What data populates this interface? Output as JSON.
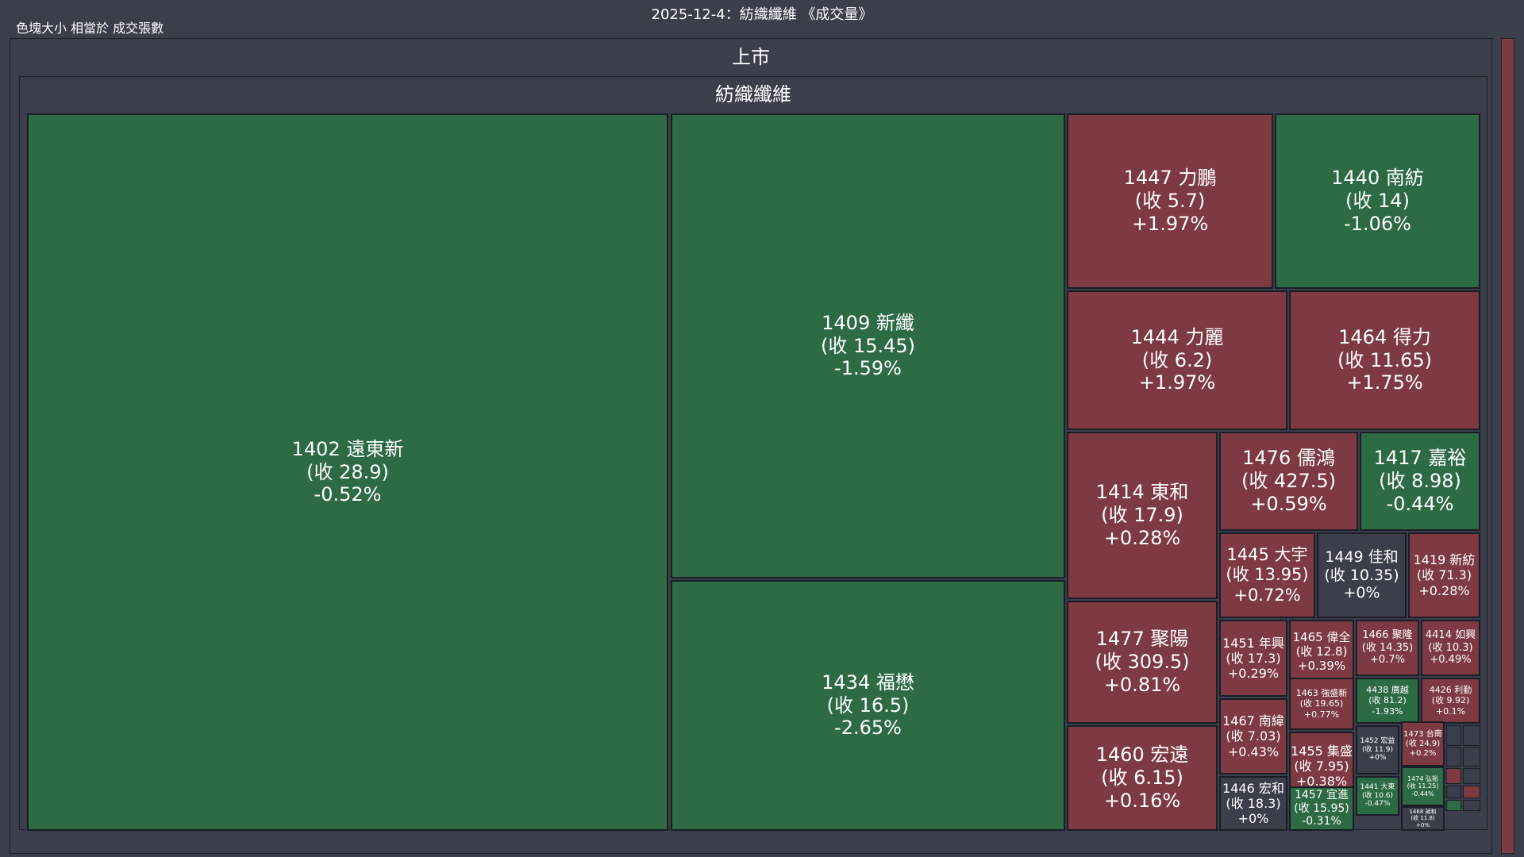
{
  "title": "2025-12-4：紡織纖維 《成交量》",
  "subtitle": "色塊大小 相當於 成交張數",
  "market_label": "上市",
  "sector_label": "紡織纖維",
  "colors": {
    "up": "#7e3a42",
    "down": "#2d6b45",
    "flat": "#3b3f4c",
    "background": "#3b3f4c",
    "border": "#1b1e25"
  },
  "chart_data": {
    "type": "treemap",
    "title": "2025-12-4：紡織纖維 《成交量》",
    "size_metric": "成交張數",
    "hierarchy": [
      "上市",
      "紡織纖維"
    ],
    "stocks": [
      {
        "code": "1402",
        "name": "遠東新",
        "close": "28.9",
        "change": "-0.52%",
        "change_pct": -0.52
      },
      {
        "code": "1409",
        "name": "新纖",
        "close": "15.45",
        "change": "-1.59%",
        "change_pct": -1.59
      },
      {
        "code": "1434",
        "name": "福懋",
        "close": "16.5",
        "change": "-2.65%",
        "change_pct": -2.65
      },
      {
        "code": "1447",
        "name": "力鵬",
        "close": "5.7",
        "change": "+1.97%",
        "change_pct": 1.97
      },
      {
        "code": "1440",
        "name": "南紡",
        "close": "14",
        "change": "-1.06%",
        "change_pct": -1.06
      },
      {
        "code": "1444",
        "name": "力麗",
        "close": "6.2",
        "change": "+1.97%",
        "change_pct": 1.97
      },
      {
        "code": "1464",
        "name": "得力",
        "close": "11.65",
        "change": "+1.75%",
        "change_pct": 1.75
      },
      {
        "code": "1414",
        "name": "東和",
        "close": "17.9",
        "change": "+0.28%",
        "change_pct": 0.28
      },
      {
        "code": "1476",
        "name": "儒鴻",
        "close": "427.5",
        "change": "+0.59%",
        "change_pct": 0.59
      },
      {
        "code": "1417",
        "name": "嘉裕",
        "close": "8.98",
        "change": "-0.44%",
        "change_pct": -0.44
      },
      {
        "code": "1477",
        "name": "聚陽",
        "close": "309.5",
        "change": "+0.81%",
        "change_pct": 0.81
      },
      {
        "code": "1445",
        "name": "大宇",
        "close": "13.95",
        "change": "+0.72%",
        "change_pct": 0.72
      },
      {
        "code": "1449",
        "name": "佳和",
        "close": "10.35",
        "change": "+0%",
        "change_pct": 0
      },
      {
        "code": "1419",
        "name": "新紡",
        "close": "71.3",
        "change": "+0.28%",
        "change_pct": 0.28
      },
      {
        "code": "1460",
        "name": "宏遠",
        "close": "6.15",
        "change": "+0.16%",
        "change_pct": 0.16
      },
      {
        "code": "1451",
        "name": "年興",
        "close": "17.3",
        "change": "+0.29%",
        "change_pct": 0.29
      },
      {
        "code": "1465",
        "name": "偉全",
        "close": "12.8",
        "change": "+0.39%",
        "change_pct": 0.39
      },
      {
        "code": "1466",
        "name": "聚隆",
        "close": "14.35",
        "change": "+0.7%",
        "change_pct": 0.7
      },
      {
        "code": "4414",
        "name": "如興",
        "close": "10.3",
        "change": "+0.49%",
        "change_pct": 0.49
      },
      {
        "code": "1463",
        "name": "強盛新",
        "close": "19.65",
        "change": "+0.77%",
        "change_pct": 0.77
      },
      {
        "code": "4438",
        "name": "廣越",
        "close": "81.2",
        "change": "-1.93%",
        "change_pct": -1.93
      },
      {
        "code": "4426",
        "name": "利勤",
        "close": "9.92",
        "change": "+0.1%",
        "change_pct": 0.1
      },
      {
        "code": "1467",
        "name": "南緯",
        "close": "7.03",
        "change": "+0.43%",
        "change_pct": 0.43
      },
      {
        "code": "1455",
        "name": "集盛",
        "close": "7.95",
        "change": "+0.38%",
        "change_pct": 0.38
      },
      {
        "code": "1452",
        "name": "宏益",
        "close": "11.9",
        "change": "+0%",
        "change_pct": 0
      },
      {
        "code": "1473",
        "name": "台南",
        "close": "24.9",
        "change": "+0.2%",
        "change_pct": 0.2
      },
      {
        "code": "1446",
        "name": "宏和",
        "close": "18.3",
        "change": "+0%",
        "change_pct": 0
      },
      {
        "code": "1457",
        "name": "宜進",
        "close": "15.95",
        "change": "-0.31%",
        "change_pct": -0.31
      },
      {
        "code": "1441",
        "name": "大東",
        "close": "10.6",
        "change": "-0.47%",
        "change_pct": -0.47
      },
      {
        "code": "1474",
        "name": "弘裕",
        "close": "11.25",
        "change": "-0.44%",
        "change_pct": -0.44
      },
      {
        "code": "1468",
        "name": "昶和",
        "close": "11.8",
        "change": "+0%",
        "change_pct": 0
      }
    ]
  }
}
